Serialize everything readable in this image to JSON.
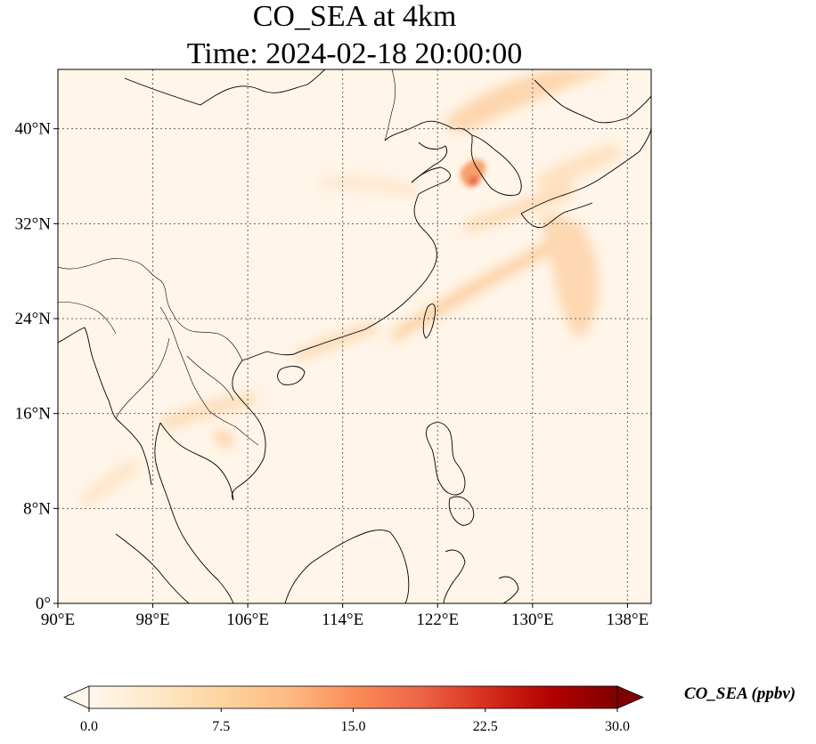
{
  "title": "CO_SEA at 4km",
  "subtitle": "Time: 2024-02-18 20:00:00",
  "map": {
    "lon_range": [
      90,
      140
    ],
    "lat_range": [
      0,
      45
    ],
    "lon_ticks": [
      {
        "value": 90,
        "label": "90°E"
      },
      {
        "value": 98,
        "label": "98°E"
      },
      {
        "value": 106,
        "label": "106°E"
      },
      {
        "value": 114,
        "label": "114°E"
      },
      {
        "value": 122,
        "label": "122°E"
      },
      {
        "value": 130,
        "label": "130°E"
      },
      {
        "value": 138,
        "label": "138°E"
      }
    ],
    "lat_ticks": [
      {
        "value": 0,
        "label": "0°"
      },
      {
        "value": 8,
        "label": "8°N"
      },
      {
        "value": 16,
        "label": "16°N"
      },
      {
        "value": 24,
        "label": "24°N"
      },
      {
        "value": 32,
        "label": "32°N"
      },
      {
        "value": 40,
        "label": "40°N"
      }
    ],
    "gridlines": true
  },
  "colorbar": {
    "label": "CO_SEA (ppbv)",
    "min": 0,
    "max": 30,
    "extend": "both",
    "ticks": [
      {
        "value": 0,
        "label": "0.0"
      },
      {
        "value": 7.5,
        "label": "7.5"
      },
      {
        "value": 15,
        "label": "15.0"
      },
      {
        "value": 22.5,
        "label": "22.5"
      },
      {
        "value": 30,
        "label": "30.0"
      }
    ],
    "colors": [
      "#fff7ec",
      "#fee8c8",
      "#fdd49e",
      "#fdbb84",
      "#fc8d59",
      "#ef6548",
      "#d7301f",
      "#b30000",
      "#7f0000"
    ]
  }
}
